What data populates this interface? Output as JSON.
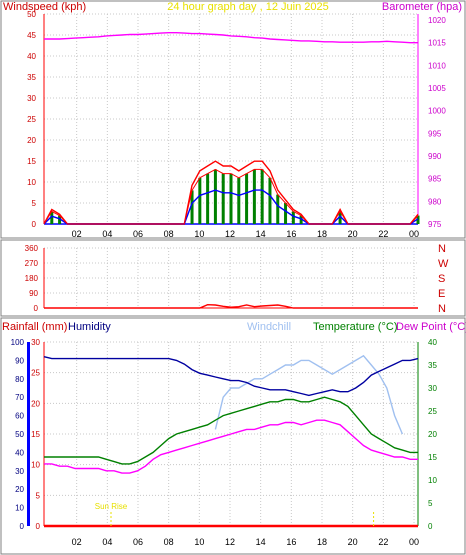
{
  "header": {
    "left_title": "Windspeed (kph)",
    "center_title": "24 hour graph day , 12 Juin 2025",
    "right_title": "Barometer (hpa)"
  },
  "colors": {
    "windspeed": "#ff0000",
    "gust": "#ff0000",
    "avg_wind": "#0000ff",
    "wind_green": "#008000",
    "barometer": "#ff00ff",
    "direction": "#ff0000",
    "humidity": "#0000a0",
    "windchill": "#a0c0f0",
    "temperature": "#008000",
    "dewpoint": "#ff00ff",
    "rainfall": "#ff0000",
    "sunrise": "#e8e000",
    "grid": "#c8c8c8"
  },
  "labels": {
    "rainfall": "Rainfall (mm)",
    "humidity": "Humidity",
    "windchill": "Windchill",
    "temperature": "Temperature (°C)",
    "dewpoint": "Dew Point (°C)",
    "sunrise": "Sun Rise"
  },
  "chart_data": [
    {
      "type": "line",
      "title": "24 hour graph day , 12 Juin 2025",
      "x_ticks": [
        "02",
        "04",
        "06",
        "08",
        "10",
        "12",
        "14",
        "16",
        "18",
        "20",
        "22",
        "00"
      ],
      "left_axis": {
        "label": "Windspeed (kph)",
        "range": [
          0,
          50
        ],
        "ticks": [
          0,
          5,
          10,
          15,
          20,
          25,
          30,
          35,
          40,
          45,
          50
        ]
      },
      "right_axis": {
        "label": "Barometer (hpa)",
        "range": [
          975,
          1020
        ],
        "ticks": [
          975,
          980,
          985,
          990,
          995,
          1000,
          1005,
          1010,
          1015,
          1020
        ]
      },
      "series": [
        {
          "name": "Windspeed (kph)",
          "axis": "left",
          "values": [
            0,
            3,
            2,
            0,
            0,
            0,
            0,
            0,
            0,
            0,
            0,
            0,
            0,
            0,
            0,
            0,
            0,
            0,
            0,
            8,
            11,
            12,
            13,
            12,
            12,
            11,
            12,
            13,
            13,
            11,
            7,
            5,
            3,
            2,
            0,
            0,
            0,
            0,
            3,
            0,
            0,
            0,
            0,
            0,
            0,
            0,
            0,
            0,
            2
          ]
        },
        {
          "name": "Barometer (hpa)",
          "axis": "right",
          "values": [
            1015.8,
            1015.8,
            1015.8,
            1015.9,
            1016,
            1016.1,
            1016.2,
            1016.3,
            1016.5,
            1016.6,
            1016.7,
            1016.8,
            1016.8,
            1016.9,
            1017,
            1017.1,
            1017.2,
            1017.2,
            1017.1,
            1017,
            1017,
            1016.9,
            1016.8,
            1016.7,
            1016.5,
            1016.4,
            1016.3,
            1016.1,
            1016,
            1015.8,
            1015.7,
            1015.6,
            1015.5,
            1015.4,
            1015.4,
            1015.3,
            1015.2,
            1015.2,
            1015.1,
            1015.1,
            1015.1,
            1015.1,
            1015.2,
            1015.2,
            1015.3,
            1015.2,
            1015.1,
            1015,
            1015
          ]
        }
      ]
    },
    {
      "type": "line",
      "title": "",
      "x_ticks": [
        "02",
        "04",
        "06",
        "08",
        "10",
        "12",
        "14",
        "16",
        "18",
        "20",
        "22",
        "00"
      ],
      "left_axis": {
        "label": "",
        "range": [
          0,
          360
        ],
        "ticks": [
          0,
          90,
          180,
          270,
          360
        ]
      },
      "right_labels": [
        "N",
        "W",
        "S",
        "E",
        "N"
      ],
      "series": [
        {
          "name": "Wind direction",
          "values": [
            0,
            0,
            0,
            0,
            0,
            0,
            0,
            0,
            0,
            0,
            0,
            0,
            0,
            0,
            0,
            0,
            0,
            0,
            0,
            0,
            0,
            20,
            18,
            10,
            5,
            8,
            18,
            8,
            12,
            15,
            18,
            10,
            0,
            0,
            0,
            0,
            0,
            0,
            0,
            0,
            0,
            0,
            0,
            0,
            0,
            0,
            0,
            0,
            0
          ]
        }
      ]
    },
    {
      "type": "line",
      "title": "",
      "x_ticks": [
        "02",
        "04",
        "06",
        "08",
        "10",
        "12",
        "14",
        "16",
        "18",
        "20",
        "22",
        "00"
      ],
      "rain_axis": {
        "label": "Rainfall (mm)",
        "range": [
          0,
          30
        ],
        "ticks": [
          0,
          5,
          10,
          15,
          20,
          25,
          30
        ]
      },
      "humidity_axis": {
        "label": "Humidity",
        "range": [
          0,
          100
        ],
        "ticks": [
          0,
          10,
          20,
          30,
          40,
          50,
          60,
          70,
          80,
          90,
          100
        ]
      },
      "temperature_axis": {
        "label": "Temperature (°C)",
        "range": [
          0,
          40
        ],
        "ticks": [
          0,
          5,
          10,
          15,
          20,
          25,
          30,
          35,
          40
        ]
      },
      "annotations": [
        "Sun Rise"
      ],
      "series": [
        {
          "name": "Humidity",
          "axis": "humidity",
          "values": [
            92,
            91,
            91,
            91,
            91,
            91,
            91,
            91,
            91,
            91,
            91,
            91,
            91,
            91,
            91,
            91,
            91,
            90,
            88,
            85,
            83,
            82,
            81,
            80,
            79,
            79,
            78,
            76,
            75,
            74,
            74,
            74,
            73,
            72,
            71,
            72,
            73,
            74,
            73,
            73,
            75,
            78,
            82,
            84,
            86,
            88,
            90,
            90,
            91
          ]
        },
        {
          "name": "Windchill",
          "axis": "temperature",
          "values": [
            null,
            null,
            null,
            null,
            null,
            null,
            null,
            null,
            null,
            null,
            null,
            null,
            null,
            null,
            null,
            null,
            null,
            null,
            null,
            null,
            null,
            null,
            21,
            28,
            30,
            30,
            31,
            32,
            32,
            33,
            34,
            35,
            35,
            36,
            36,
            35,
            34,
            33,
            34,
            35,
            36,
            37,
            35,
            33,
            30,
            24,
            20,
            null,
            null
          ]
        },
        {
          "name": "Temperature (°C)",
          "axis": "temperature",
          "values": [
            15,
            15,
            15,
            15,
            15,
            15,
            15,
            15,
            14.5,
            14,
            13.5,
            13.5,
            14,
            15,
            16,
            17.5,
            19,
            20,
            20.5,
            21,
            21.5,
            22,
            23,
            24,
            24.5,
            25,
            25.5,
            26,
            26.5,
            27,
            27,
            27.5,
            27.5,
            27,
            27,
            27.5,
            28,
            27.5,
            27,
            26,
            24,
            22,
            20,
            19,
            18,
            17,
            16.5,
            16,
            16
          ]
        },
        {
          "name": "Dew Point (°C)",
          "axis": "temperature",
          "values": [
            13.5,
            13.5,
            13,
            13,
            12.5,
            12.5,
            12.5,
            12.5,
            12,
            12,
            11.5,
            11.5,
            12,
            13,
            14.5,
            15.5,
            16,
            16.5,
            17,
            17.5,
            18,
            18.5,
            19,
            19.5,
            20,
            20.5,
            21,
            21,
            21.5,
            22,
            22,
            22.5,
            22.5,
            22,
            22.5,
            23,
            23,
            22.5,
            22,
            20.5,
            19,
            17.5,
            16.5,
            16,
            15.5,
            15,
            15,
            14.5,
            14.5
          ]
        },
        {
          "name": "Rainfall (mm)",
          "axis": "rain",
          "values": [
            0,
            0,
            0,
            0,
            0,
            0,
            0,
            0,
            0,
            0,
            0,
            0,
            0,
            0,
            0,
            0,
            0,
            0,
            0,
            0,
            0,
            0,
            0,
            0,
            0,
            0,
            0,
            0,
            0,
            0,
            0,
            0,
            0,
            0,
            0,
            0,
            0,
            0,
            0,
            0,
            0,
            0,
            0,
            0,
            0,
            0,
            0,
            0,
            0
          ]
        }
      ]
    }
  ]
}
